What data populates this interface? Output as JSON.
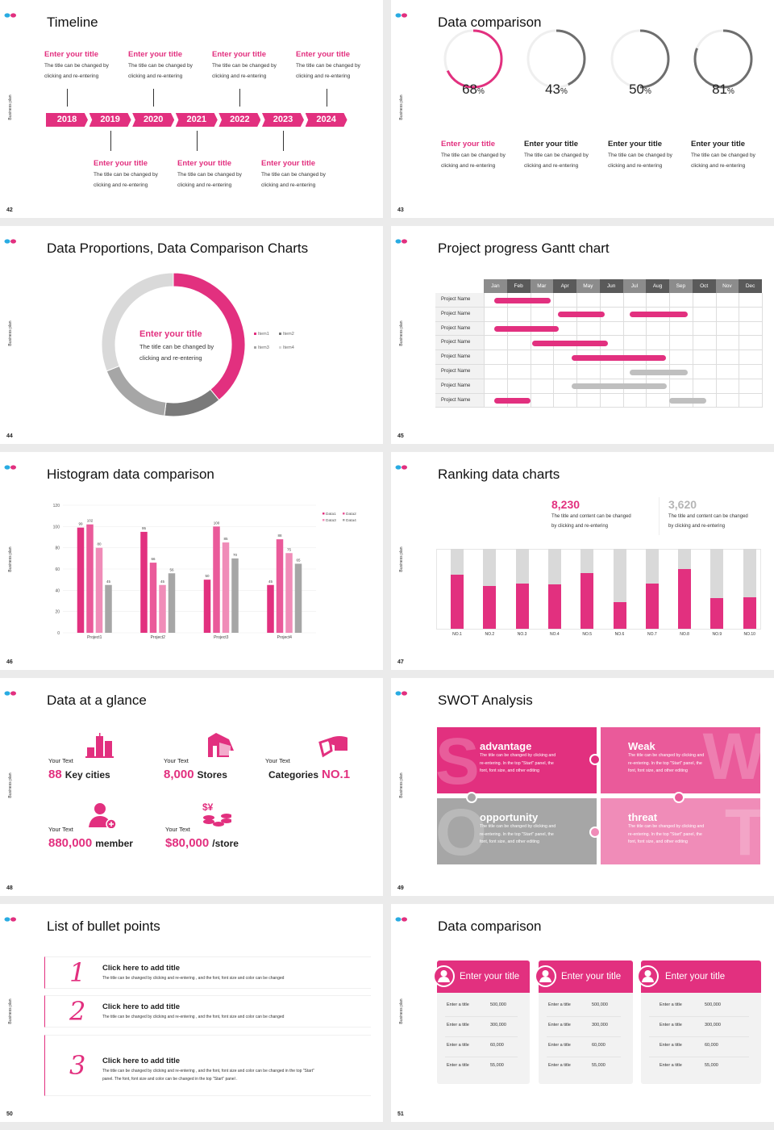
{
  "colors": {
    "accent": "#e2307f",
    "accent2": "#ea5a9a",
    "accent3": "#f08cb8",
    "gray": "#a6a6a6",
    "dark_gray": "#6e6e6e",
    "light_gray": "#d9d9d9",
    "logo_blue": "#29abe2"
  },
  "side_label": "Business plan",
  "s42": {
    "page": "42",
    "title": "Timeline",
    "years": [
      "2018",
      "2019",
      "2020",
      "2021",
      "2022",
      "2023",
      "2024"
    ],
    "items": [
      {
        "title": "Enter your title",
        "line1": "The title can be changed by",
        "line2": "clicking and re-entering"
      },
      {
        "title": "Enter your title",
        "line1": "The title can be changed by",
        "line2": "clicking and re-entering"
      },
      {
        "title": "Enter your title",
        "line1": "The title can be changed by",
        "line2": "clicking and re-entering"
      },
      {
        "title": "Enter your title",
        "line1": "The title can be changed by",
        "line2": "clicking and re-entering"
      },
      {
        "title": "Enter your title",
        "line1": "The title can be changed by",
        "line2": "clicking and re-entering"
      },
      {
        "title": "Enter your title",
        "line1": "The title can be changed by",
        "line2": "clicking and re-entering"
      },
      {
        "title": "Enter your title",
        "line1": "The title can be changed by",
        "line2": "clicking and re-entering"
      }
    ]
  },
  "s43": {
    "page": "43",
    "title": "Data comparison",
    "gauges": [
      {
        "value": 68,
        "num": "68",
        "unit": "%",
        "title": "Enter your title",
        "line1": "The title can be changed by",
        "line2": "clicking and re-entering",
        "color": "#e2307f"
      },
      {
        "value": 43,
        "num": "43",
        "unit": "%",
        "title": "Enter your title",
        "line1": "The title can be changed by",
        "line2": "clicking and re-entering",
        "color": "#6e6e6e"
      },
      {
        "value": 50,
        "num": "50",
        "unit": "%",
        "title": "Enter your title",
        "line1": "The title can be changed by",
        "line2": "clicking and re-entering",
        "color": "#6e6e6e"
      },
      {
        "value": 81,
        "num": "81",
        "unit": "%",
        "title": "Enter your title",
        "line1": "The title can be changed by",
        "line2": "clicking and re-entering",
        "color": "#6e6e6e"
      }
    ]
  },
  "s44": {
    "page": "44",
    "title": "Data Proportions, Data Comparison Charts",
    "center_title": "Enter your title",
    "center_line1": "The title can be changed by",
    "center_line2": "clicking and re-entering"
  },
  "s45": {
    "page": "45",
    "title": "Project progress Gantt chart"
  },
  "s46": {
    "page": "46",
    "title": "Histogram data comparison"
  },
  "s47": {
    "page": "47",
    "title": "Ranking data charts",
    "stats": [
      {
        "value": "8,230",
        "line1": "The title and content can be changed",
        "line2": "by clicking and re-entering",
        "color": "#e2307f"
      },
      {
        "value": "3,620",
        "line1": "The title and content can be changed",
        "line2": "by clicking and re-entering",
        "color": "#b5b5b5"
      }
    ]
  },
  "s48": {
    "page": "48",
    "title": "Data at a glance",
    "items": [
      {
        "label": "Your Text",
        "num": "88",
        "unit": "Key cities",
        "icon": "buildings-icon",
        "num_first": true
      },
      {
        "label": "Your Text",
        "num": "8,000",
        "unit": "Stores",
        "icon": "store-icon",
        "num_first": true
      },
      {
        "label": "Your Text",
        "num": "NO.1",
        "unit": "Categories",
        "icon": "pie-chart-icon",
        "num_first": false
      },
      {
        "label": "Your Text",
        "num": "880,000",
        "unit": "member",
        "icon": "add-user-icon",
        "num_first": true
      },
      {
        "label": "Your Text",
        "num": "$80,000",
        "unit": "/store",
        "icon": "coins-icon",
        "num_first": true
      }
    ]
  },
  "s49": {
    "page": "49",
    "title": "SWOT Analysis",
    "quads": [
      {
        "letter": "S",
        "title": "advantage",
        "line1": "The title can be changed by clicking and",
        "line2": "re-entering. In the top \"Start\" panel, the",
        "line3": "font, font size, and other editing",
        "color": "#e2307f"
      },
      {
        "letter": "W",
        "title": "Weak",
        "line1": "The title can be changed by clicking and",
        "line2": "re-entering. In the top \"Start\" panel, the",
        "line3": "font, font size, and other editing",
        "color": "#ea5a9a"
      },
      {
        "letter": "O",
        "title": "opportunity",
        "line1": "The title can be changed by clicking and",
        "line2": "re-entering. In the top \"Start\" panel, the",
        "line3": "font, font size, and other editing",
        "color": "#a6a6a6"
      },
      {
        "letter": "T",
        "title": "threat",
        "line1": "The title can be changed by clicking and",
        "line2": "re-entering. In the top \"Start\" panel, the",
        "line3": "font, font size, and other editing",
        "color": "#f08cb8"
      }
    ]
  },
  "s50": {
    "page": "50",
    "title": "List of bullet points",
    "bullets": [
      {
        "num": "1",
        "title": "Click here to add title",
        "line1": "The title can be changed by clicking and re-entering , and the font, font size and color can be changed",
        "line2": ""
      },
      {
        "num": "2",
        "title": "Click here to add title",
        "line1": "The title can be changed by clicking and re-entering , and the font, font size and color can be changed",
        "line2": ""
      },
      {
        "num": "3",
        "title": "Click here to add title",
        "line1": "The title can be changed by clicking and re-entering , and the font, font size and color can be changed in the top \"Start\"",
        "line2": "panel. The font, font size and color can be changed in the top \"Start\" panel ."
      }
    ]
  },
  "s51": {
    "page": "51",
    "title": "Data comparison",
    "cards": [
      {
        "title": "Enter your title",
        "icon": "phone-user-icon",
        "rows": [
          {
            "label": "Enter a title",
            "value": "500,000"
          },
          {
            "label": "Enter a title",
            "value": "300,000"
          },
          {
            "label": "Enter a title",
            "value": "60,000"
          },
          {
            "label": "Enter a title",
            "value": "55,000"
          }
        ]
      },
      {
        "title": "Enter your title",
        "icon": "user-upload-icon",
        "rows": [
          {
            "label": "Enter a title",
            "value": "500,000"
          },
          {
            "label": "Enter a title",
            "value": "300,000"
          },
          {
            "label": "Enter a title",
            "value": "60,000"
          },
          {
            "label": "Enter a title",
            "value": "55,000"
          }
        ]
      },
      {
        "title": "Enter your title",
        "icon": "group-icon",
        "rows": [
          {
            "label": "Enter a title",
            "value": "500,000"
          },
          {
            "label": "Enter a title",
            "value": "300,000"
          },
          {
            "label": "Enter a title",
            "value": "60,000"
          },
          {
            "label": "Enter a title",
            "value": "55,000"
          }
        ]
      }
    ]
  },
  "chart_data": [
    {
      "id": "donut",
      "type": "pie",
      "donut": true,
      "legend": [
        "Item1",
        "Item2",
        "Item3",
        "Item4"
      ],
      "values": [
        39,
        13,
        17,
        31
      ],
      "colors": [
        "#e2307f",
        "#7a7a7a",
        "#a6a6a6",
        "#d9d9d9"
      ],
      "legend_position": "right"
    },
    {
      "id": "gantt",
      "type": "bar",
      "orientation": "gantt",
      "months": [
        "Jan",
        "Feb",
        "Mar",
        "Apr",
        "May",
        "Jun",
        "Jul",
        "Aug",
        "Sep",
        "Oct",
        "Nov",
        "Dec"
      ],
      "rows": [
        {
          "name": "Project Name",
          "tasks": [
            {
              "start": 0.45,
              "end": 2.9,
              "status": "active"
            }
          ]
        },
        {
          "name": "Project Name",
          "tasks": [
            {
              "start": 3.2,
              "end": 5.2,
              "status": "active"
            },
            {
              "start": 6.3,
              "end": 8.8,
              "status": "active"
            }
          ]
        },
        {
          "name": "Project Name",
          "tasks": [
            {
              "start": 0.45,
              "end": 3.25,
              "status": "active"
            }
          ]
        },
        {
          "name": "Project Name",
          "tasks": [
            {
              "start": 2.1,
              "end": 5.35,
              "status": "active"
            }
          ]
        },
        {
          "name": "Project Name",
          "tasks": [
            {
              "start": 3.8,
              "end": 7.85,
              "status": "active"
            }
          ]
        },
        {
          "name": "Project Name",
          "tasks": [
            {
              "start": 6.3,
              "end": 8.8,
              "status": "planned"
            }
          ]
        },
        {
          "name": "Project Name",
          "tasks": [
            {
              "start": 3.8,
              "end": 7.9,
              "status": "planned"
            }
          ]
        },
        {
          "name": "Project Name",
          "tasks": [
            {
              "start": 0.45,
              "end": 2.0,
              "status": "active"
            },
            {
              "start": 8.0,
              "end": 9.6,
              "status": "planned"
            }
          ]
        }
      ],
      "status_colors": {
        "active": "#e2307f",
        "planned": "#bfbfbf"
      }
    },
    {
      "id": "histogram",
      "type": "bar",
      "categories": [
        "Project1",
        "Project2",
        "Project3",
        "Project4"
      ],
      "series": [
        {
          "name": "Data1",
          "values": [
            99,
            95,
            50,
            45
          ],
          "color": "#e2307f"
        },
        {
          "name": "Data2",
          "values": [
            102,
            66,
            100,
            88
          ],
          "color": "#ea5a9a"
        },
        {
          "name": "Data3",
          "values": [
            80,
            45,
            85,
            75
          ],
          "color": "#f08cb8"
        },
        {
          "name": "Data4",
          "values": [
            45,
            56,
            70,
            65
          ],
          "color": "#a6a6a6"
        }
      ],
      "ylim": [
        0,
        120
      ],
      "yticks": [
        "0",
        "20",
        "40",
        "60",
        "80",
        "100",
        "120"
      ],
      "grid": true,
      "legend_position": "top-right"
    },
    {
      "id": "ranking",
      "type": "bar",
      "stacked": true,
      "categories": [
        "NO.1",
        "NO.2",
        "NO.3",
        "NO.4",
        "NO.5",
        "NO.6",
        "NO.7",
        "NO.8",
        "NO.9",
        "NO.10"
      ],
      "values": [
        0.68,
        0.54,
        0.57,
        0.56,
        0.7,
        0.33,
        0.57,
        0.75,
        0.38,
        0.39
      ],
      "ylim": [
        0,
        1
      ]
    }
  ]
}
